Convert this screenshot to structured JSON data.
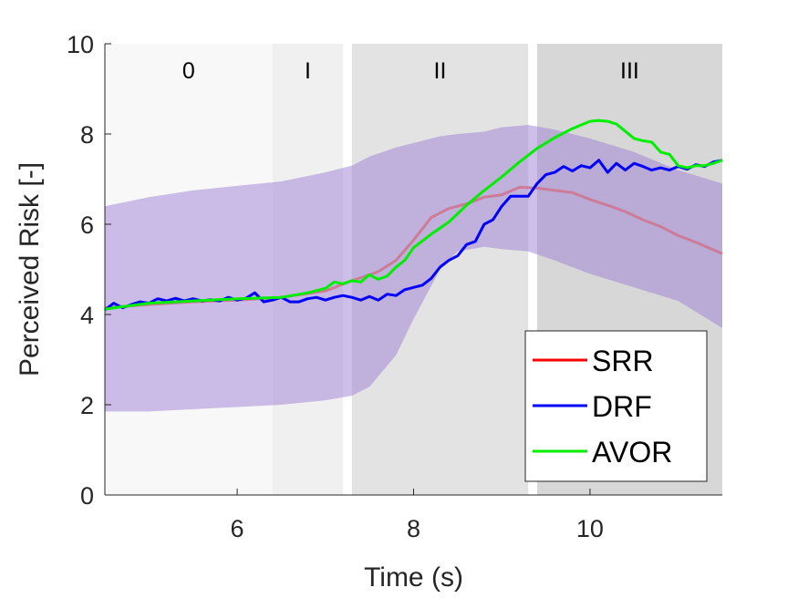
{
  "chart_data": {
    "type": "line",
    "title": "",
    "xlabel": "Time (s)",
    "ylabel": "Perceived Risk [-]",
    "xlim": [
      4.5,
      11.5
    ],
    "ylim": [
      0,
      10
    ],
    "xticks": [
      6,
      8,
      10
    ],
    "yticks": [
      0,
      2,
      4,
      6,
      8,
      10
    ],
    "grid": false,
    "legend_position": "bottom-right",
    "phases": [
      {
        "label": "0",
        "start": 4.5,
        "end": 6.4,
        "color": "#f8f8f8"
      },
      {
        "label": "I",
        "start": 6.4,
        "end": 7.2,
        "color": "#f0f0f0"
      },
      {
        "label": "II",
        "start": 7.3,
        "end": 9.3,
        "color": "#e3e3e3"
      },
      {
        "label": "III",
        "start": 9.4,
        "end": 11.5,
        "color": "#d7d7d7"
      }
    ],
    "band": {
      "name": "SRR spread",
      "color": "#9b7fd4",
      "x": [
        4.5,
        5.0,
        5.5,
        6.0,
        6.5,
        7.0,
        7.3,
        7.5,
        7.8,
        8.0,
        8.3,
        8.5,
        8.8,
        9.0,
        9.3,
        9.6,
        10.0,
        10.5,
        11.0,
        11.5
      ],
      "upper": [
        6.4,
        6.6,
        6.75,
        6.85,
        6.95,
        7.15,
        7.3,
        7.5,
        7.7,
        7.8,
        7.95,
        8.0,
        8.05,
        8.15,
        8.2,
        8.1,
        7.9,
        7.6,
        7.2,
        6.9
      ],
      "lower": [
        1.85,
        1.85,
        1.9,
        1.95,
        2.0,
        2.1,
        2.2,
        2.4,
        3.1,
        3.9,
        5.0,
        5.4,
        5.5,
        5.45,
        5.4,
        5.2,
        4.9,
        4.6,
        4.3,
        3.7
      ]
    },
    "series": [
      {
        "name": "SRR",
        "color": "#cc7c98",
        "legend_color": "#ff0000",
        "x": [
          4.5,
          5.0,
          5.5,
          6.0,
          6.5,
          7.0,
          7.3,
          7.6,
          7.8,
          8.0,
          8.2,
          8.4,
          8.6,
          8.8,
          9.0,
          9.2,
          9.4,
          9.6,
          9.8,
          10.0,
          10.2,
          10.4,
          10.6,
          10.8,
          11.0,
          11.2,
          11.5
        ],
        "values": [
          4.15,
          4.22,
          4.28,
          4.32,
          4.38,
          4.52,
          4.75,
          4.95,
          5.2,
          5.65,
          6.15,
          6.35,
          6.45,
          6.6,
          6.65,
          6.82,
          6.8,
          6.75,
          6.7,
          6.55,
          6.42,
          6.28,
          6.1,
          5.95,
          5.75,
          5.6,
          5.35
        ]
      },
      {
        "name": "DRF",
        "color": "#0000ff",
        "x": [
          4.5,
          4.6,
          4.7,
          4.8,
          4.9,
          5.0,
          5.1,
          5.2,
          5.3,
          5.4,
          5.5,
          5.6,
          5.7,
          5.8,
          5.9,
          6.0,
          6.1,
          6.2,
          6.3,
          6.4,
          6.5,
          6.6,
          6.7,
          6.8,
          6.9,
          7.0,
          7.1,
          7.2,
          7.3,
          7.4,
          7.5,
          7.6,
          7.7,
          7.8,
          7.9,
          8.0,
          8.1,
          8.2,
          8.3,
          8.4,
          8.5,
          8.6,
          8.7,
          8.8,
          8.9,
          9.0,
          9.1,
          9.2,
          9.3,
          9.4,
          9.5,
          9.6,
          9.7,
          9.8,
          9.9,
          10.0,
          10.1,
          10.2,
          10.3,
          10.4,
          10.5,
          10.6,
          10.7,
          10.8,
          10.9,
          11.0,
          11.1,
          11.2,
          11.3,
          11.4,
          11.5
        ],
        "values": [
          4.1,
          4.25,
          4.15,
          4.22,
          4.28,
          4.25,
          4.35,
          4.3,
          4.36,
          4.3,
          4.35,
          4.3,
          4.33,
          4.3,
          4.38,
          4.32,
          4.36,
          4.48,
          4.28,
          4.32,
          4.38,
          4.28,
          4.28,
          4.35,
          4.38,
          4.32,
          4.38,
          4.42,
          4.38,
          4.32,
          4.4,
          4.32,
          4.45,
          4.42,
          4.55,
          4.6,
          4.65,
          4.8,
          5.05,
          5.2,
          5.3,
          5.55,
          5.62,
          6.0,
          6.1,
          6.4,
          6.62,
          6.62,
          6.62,
          6.9,
          7.1,
          7.15,
          7.28,
          7.18,
          7.3,
          7.25,
          7.42,
          7.15,
          7.35,
          7.2,
          7.35,
          7.28,
          7.2,
          7.25,
          7.2,
          7.28,
          7.22,
          7.32,
          7.28,
          7.38,
          7.42
        ]
      },
      {
        "name": "AVOR",
        "color": "#00ee00",
        "x": [
          4.5,
          4.8,
          5.0,
          5.5,
          6.0,
          6.5,
          6.8,
          7.0,
          7.1,
          7.2,
          7.3,
          7.4,
          7.5,
          7.6,
          7.7,
          7.8,
          7.9,
          8.0,
          8.2,
          8.4,
          8.6,
          8.8,
          9.0,
          9.2,
          9.4,
          9.6,
          9.8,
          10.0,
          10.1,
          10.2,
          10.3,
          10.5,
          10.6,
          10.7,
          10.8,
          10.9,
          11.0,
          11.1,
          11.2,
          11.3,
          11.4,
          11.5
        ],
        "values": [
          4.12,
          4.2,
          4.25,
          4.3,
          4.35,
          4.38,
          4.48,
          4.58,
          4.72,
          4.68,
          4.75,
          4.72,
          4.88,
          4.78,
          4.85,
          5.05,
          5.2,
          5.48,
          5.78,
          6.05,
          6.42,
          6.75,
          7.05,
          7.38,
          7.68,
          7.92,
          8.12,
          8.28,
          8.3,
          8.28,
          8.22,
          7.9,
          7.85,
          7.82,
          7.6,
          7.55,
          7.3,
          7.25,
          7.3,
          7.3,
          7.35,
          7.42
        ]
      }
    ]
  }
}
